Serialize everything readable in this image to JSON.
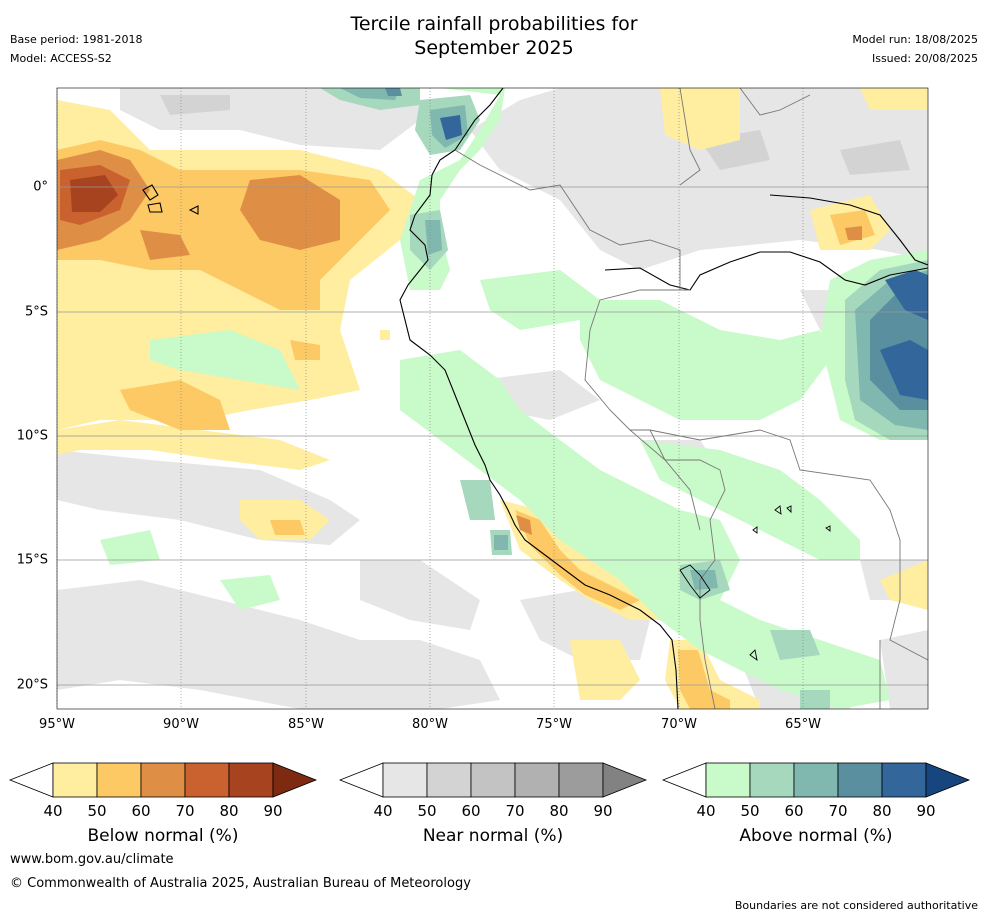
{
  "header": {
    "title_line1": "Tercile rainfall probabilities for",
    "title_line2": "September 2025",
    "base_period": "Base period: 1981-2018",
    "model": "Model: ACCESS-S2",
    "model_run": "Model run: 18/08/2025",
    "issued": "Issued: 20/08/2025"
  },
  "map": {
    "region": "Western South America (Ecuador, Peru, western Brazil, Bolivia)",
    "lon_range": [
      -95,
      -60
    ],
    "lat_range": [
      -21,
      4
    ],
    "lon_ticks": [
      "95°W",
      "90°W",
      "85°W",
      "80°W",
      "75°W",
      "70°W",
      "65°W"
    ],
    "lat_ticks": [
      "0°",
      "5°S",
      "10°S",
      "15°S",
      "20°S"
    ]
  },
  "legends": [
    {
      "title": "Below normal (%)",
      "ticks": [
        "40",
        "50",
        "60",
        "70",
        "80",
        "90"
      ],
      "colors": [
        "#ffeda0",
        "#fdc964",
        "#df8f45",
        "#c9622f",
        "#a8431f",
        "#7d2a11"
      ]
    },
    {
      "title": "Near normal (%)",
      "ticks": [
        "40",
        "50",
        "60",
        "70",
        "80",
        "90"
      ],
      "colors": [
        "#e6e6e6",
        "#d3d3d3",
        "#c3c3c3",
        "#b1b1b1",
        "#9c9c9c",
        "#828282"
      ]
    },
    {
      "title": "Above normal (%)",
      "ticks": [
        "40",
        "50",
        "60",
        "70",
        "80",
        "90"
      ],
      "colors": [
        "#c9fac9",
        "#a5d8bd",
        "#80b8b0",
        "#5a8fa0",
        "#33669a",
        "#17467e"
      ]
    }
  ],
  "footer": {
    "website": "www.bom.gov.au/climate",
    "copyright": "© Commonwealth of Australia 2025, Australian Bureau of Meteorology",
    "disclaimer": "Boundaries are not considered authoritative"
  }
}
